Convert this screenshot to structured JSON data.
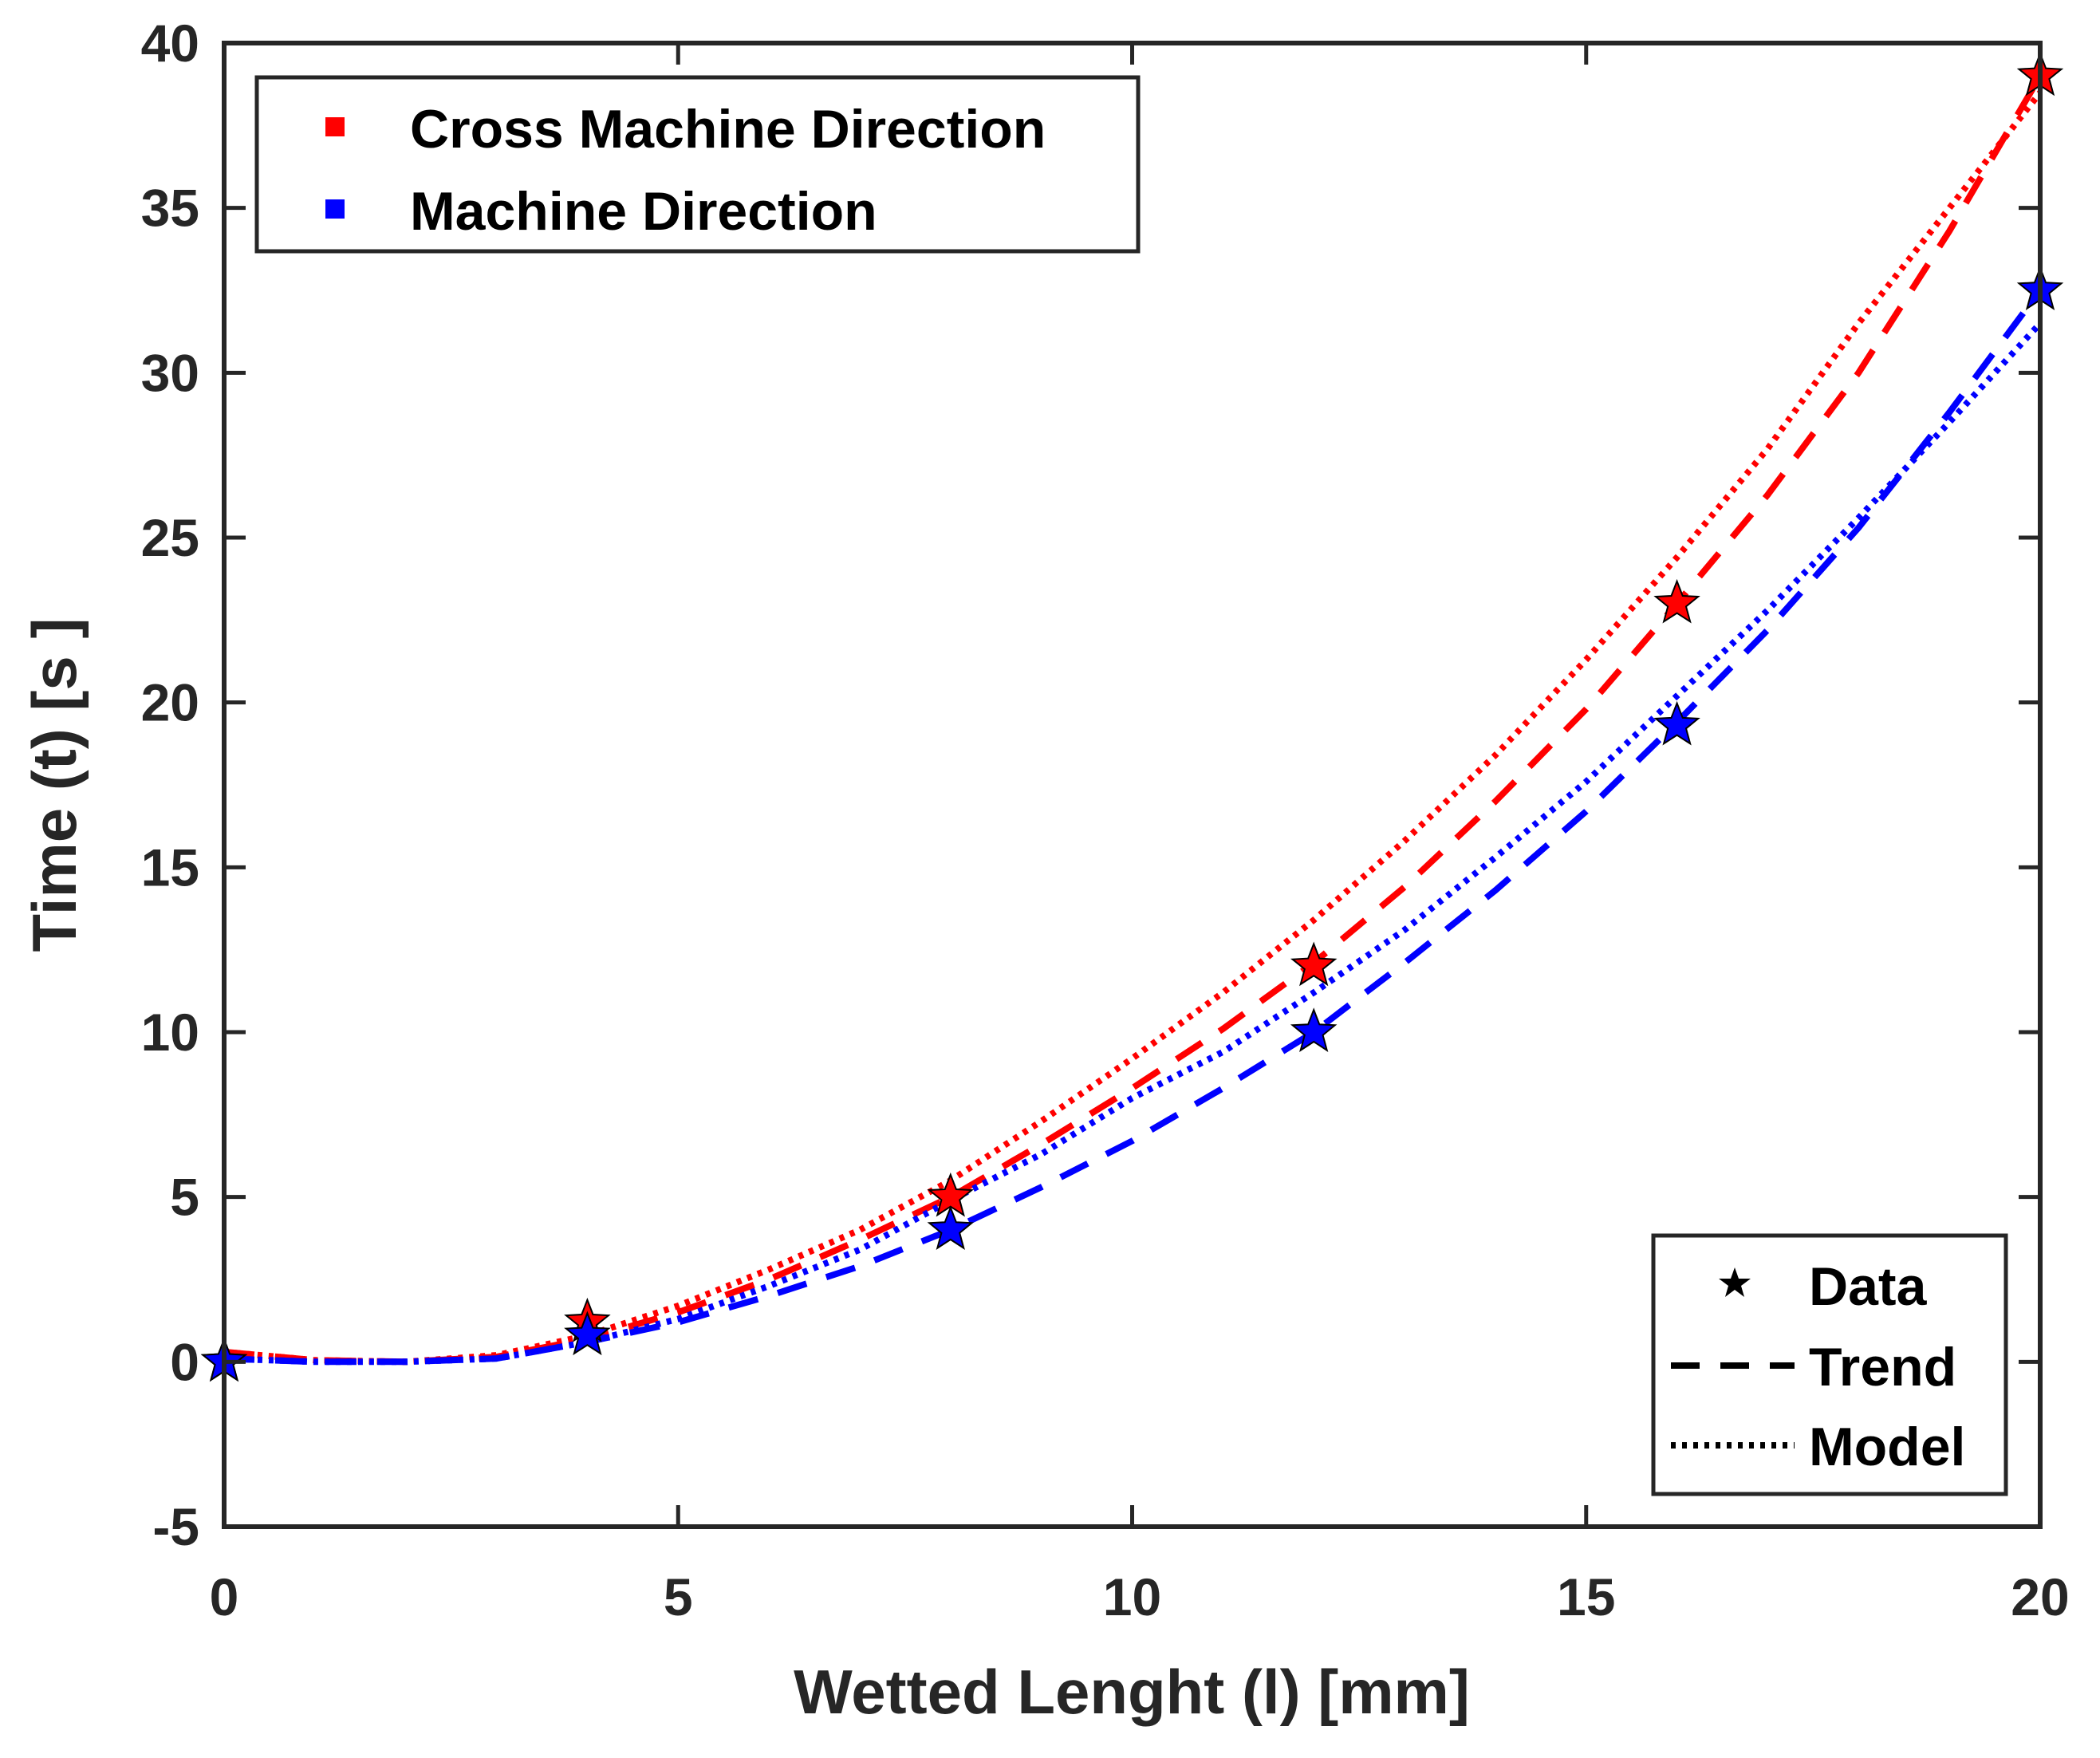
{
  "chart_data": {
    "type": "line",
    "title": "",
    "xlabel": "Wetted Lenght (l) [mm]",
    "ylabel": "Time (t) [s ]",
    "xlim": [
      0,
      20
    ],
    "ylim": [
      -5,
      40
    ],
    "xticks": [
      0,
      5,
      10,
      15,
      20
    ],
    "xtick_labels": [
      "0",
      "5",
      "10",
      "15",
      "20"
    ],
    "yticks": [
      -5,
      0,
      5,
      10,
      15,
      20,
      25,
      30,
      35,
      40
    ],
    "ytick_labels": [
      "-5",
      "0",
      "5",
      "10",
      "15",
      "20",
      "25",
      "30",
      "35",
      "40"
    ],
    "grid": false,
    "series": [
      {
        "name": "Cross Machine Direction",
        "color": "#ff0000",
        "data": {
          "x": [
            0,
            4,
            8,
            12,
            16,
            20
          ],
          "y": [
            0,
            1.2,
            5,
            12,
            23,
            39
          ]
        },
        "trend": {
          "x": [
            0,
            1,
            2,
            3,
            4,
            5,
            6,
            7,
            8,
            9,
            10,
            11,
            12,
            13,
            14,
            15,
            16,
            17,
            18,
            19,
            20
          ],
          "y": [
            0.3,
            0.05,
            0.0,
            0.15,
            0.7,
            1.5,
            2.5,
            3.7,
            5.0,
            6.6,
            8.3,
            10.1,
            12.1,
            14.4,
            17.0,
            19.8,
            23.0,
            26.3,
            30.0,
            34.3,
            39.0
          ]
        },
        "model": {
          "x": [
            0,
            1,
            2,
            3,
            4,
            5,
            6,
            7,
            8,
            9,
            10,
            11,
            12,
            13,
            14,
            15,
            16,
            17,
            18,
            19,
            20
          ],
          "y": [
            0.3,
            0.05,
            0.0,
            0.2,
            0.8,
            1.7,
            2.8,
            4.0,
            5.5,
            7.3,
            9.2,
            11.2,
            13.4,
            15.8,
            18.4,
            21.3,
            24.4,
            27.7,
            31.5,
            35.0,
            38.5
          ]
        }
      },
      {
        "name": "Machine Direction",
        "color": "#0000ff",
        "data": {
          "x": [
            0,
            4,
            8,
            12,
            16,
            20
          ],
          "y": [
            0,
            0.8,
            4,
            10,
            19.3,
            32.5
          ]
        },
        "trend": {
          "x": [
            0,
            1,
            2,
            3,
            4,
            5,
            6,
            7,
            8,
            9,
            10,
            11,
            12,
            13,
            14,
            15,
            16,
            17,
            18,
            19,
            20
          ],
          "y": [
            0.1,
            0.0,
            0.0,
            0.1,
            0.6,
            1.2,
            2.0,
            2.9,
            4.0,
            5.3,
            6.7,
            8.3,
            10.0,
            12.1,
            14.3,
            16.7,
            19.4,
            22.2,
            25.3,
            28.8,
            32.5
          ]
        },
        "model": {
          "x": [
            0,
            1,
            2,
            3,
            4,
            5,
            6,
            7,
            8,
            9,
            10,
            11,
            12,
            13,
            14,
            15,
            16,
            17,
            18,
            19,
            20
          ],
          "y": [
            0.1,
            0.0,
            0.0,
            0.1,
            0.6,
            1.3,
            2.3,
            3.4,
            4.9,
            6.3,
            8.0,
            9.4,
            11.2,
            13.1,
            15.3,
            17.6,
            20.2,
            22.8,
            25.6,
            28.5,
            31.5
          ]
        }
      }
    ],
    "legends": [
      {
        "placement": "top-left",
        "entries": [
          {
            "label": "Cross Machine Direction",
            "color": "#ff0000"
          },
          {
            "label": "Machine Direction",
            "color": "#0000ff"
          }
        ]
      },
      {
        "placement": "bottom-right",
        "entries": [
          {
            "label": "Data",
            "marker": "star"
          },
          {
            "label": "Trend",
            "line": "dashed"
          },
          {
            "label": "Model",
            "line": "dotted"
          }
        ]
      }
    ]
  }
}
